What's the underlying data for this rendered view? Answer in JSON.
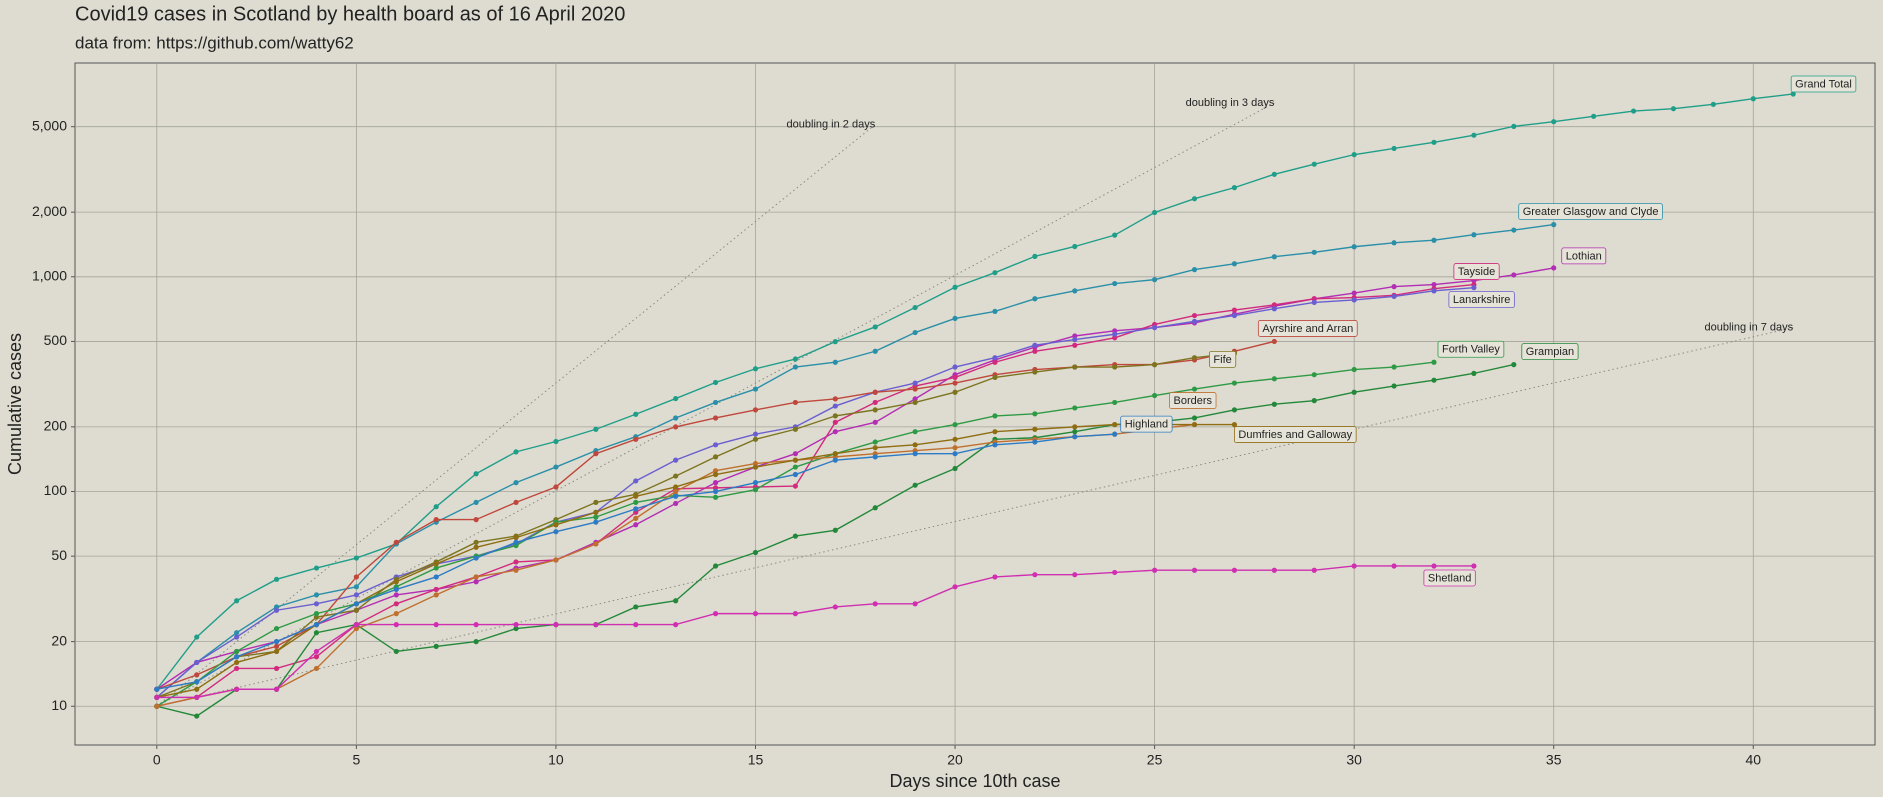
{
  "chart_data": {
    "type": "line",
    "title": "Covid19 cases in Scotland by health board as of 16 April 2020",
    "subtitle": "data from: https://github.com/watty62",
    "x_label": "Days since 10th case",
    "y_label": "Cumulative cases",
    "log_y": true,
    "grid": true,
    "xlim": [
      -2.05,
      43.05
    ],
    "xticks": [
      0,
      5,
      10,
      15,
      20,
      25,
      30,
      35,
      40
    ],
    "ylim": [
      6.6,
      9900
    ],
    "yticks": [
      10,
      20,
      50,
      100,
      200,
      500,
      {
        "value": 1000,
        "label": "1,000"
      },
      {
        "value": 2000,
        "label": "2,000"
      },
      {
        "value": 5000,
        "label": "5,000"
      }
    ],
    "x": [
      0,
      1,
      2,
      3,
      4,
      5,
      6,
      7,
      8,
      9,
      10,
      11,
      12,
      13,
      14,
      15,
      16,
      17,
      18,
      19,
      20,
      21,
      22,
      23,
      24,
      25,
      26,
      27,
      28,
      29,
      30,
      31,
      32,
      33,
      34,
      35,
      36,
      37,
      38,
      39,
      40,
      41
    ],
    "series": [
      {
        "name": "Grand Total",
        "color": "#1f9e89",
        "values": [
          12,
          21,
          31,
          39,
          44,
          49,
          57,
          85,
          121,
          153,
          171,
          195,
          229,
          271,
          322,
          373,
          414,
          499,
          584,
          719,
          894,
          1045,
          1245,
          1384,
          1563,
          1993,
          2310,
          2602,
          3001,
          3345,
          3706,
          3961,
          4229,
          4565,
          5018,
          5275,
          5590,
          5912,
          6067,
          6358,
          6748,
          7102
        ]
      },
      {
        "name": "Greater Glasgow and Clyde",
        "color": "#2a8fa8",
        "values": [
          11,
          16,
          22,
          29,
          33,
          36,
          57,
          72,
          89,
          110,
          130,
          155,
          180,
          220,
          260,
          300,
          380,
          400,
          450,
          550,
          640,
          690,
          790,
          860,
          930,
          970,
          1080,
          1150,
          1240,
          1300,
          1380,
          1440,
          1480,
          1570,
          1650,
          1750,
          null,
          null,
          null,
          null,
          null,
          null
        ]
      },
      {
        "name": "Lothian",
        "color": "#b32db5",
        "values": [
          12,
          16,
          18,
          20,
          24,
          28,
          33,
          35,
          38,
          44,
          48,
          58,
          70,
          88,
          110,
          130,
          150,
          190,
          210,
          270,
          350,
          410,
          470,
          530,
          560,
          580,
          610,
          670,
          730,
          790,
          840,
          900,
          920,
          960,
          1020,
          1100,
          null,
          null,
          null,
          null,
          null,
          null
        ]
      },
      {
        "name": "Tayside",
        "color": "#d12a7e",
        "values": [
          10,
          11,
          15,
          15,
          17,
          24,
          30,
          35,
          40,
          47,
          48,
          57,
          80,
          103,
          104,
          105,
          106,
          210,
          260,
          310,
          340,
          400,
          450,
          480,
          520,
          600,
          660,
          700,
          740,
          790,
          800,
          820,
          880,
          920,
          null,
          null,
          null,
          null,
          null,
          null,
          null,
          null
        ]
      },
      {
        "name": "Lanarkshire",
        "color": "#6a5fd0",
        "values": [
          11,
          16,
          21,
          28,
          30,
          33,
          40,
          46,
          50,
          57,
          72,
          80,
          112,
          140,
          165,
          185,
          200,
          250,
          290,
          320,
          380,
          420,
          480,
          510,
          540,
          580,
          620,
          660,
          710,
          760,
          780,
          810,
          860,
          890,
          null,
          null,
          null,
          null,
          null,
          null,
          null,
          null
        ]
      },
      {
        "name": "Ayrshire and Arran",
        "color": "#c0473c",
        "values": [
          12,
          14,
          17,
          19,
          24,
          40,
          58,
          74,
          74,
          89,
          105,
          150,
          175,
          200,
          220,
          240,
          260,
          270,
          290,
          300,
          320,
          350,
          370,
          380,
          390,
          390,
          410,
          450,
          500,
          null,
          null,
          null,
          null,
          null,
          null,
          null,
          null,
          null,
          null,
          null,
          null,
          null
        ]
      },
      {
        "name": "Fife",
        "color": "#7d7420",
        "values": [
          11,
          13,
          17,
          18,
          26,
          28,
          39,
          47,
          58,
          62,
          74,
          89,
          97,
          118,
          145,
          175,
          195,
          225,
          240,
          260,
          290,
          340,
          360,
          380,
          380,
          390,
          420,
          440,
          null,
          null,
          null,
          null,
          null,
          null,
          null,
          null,
          null,
          null,
          null,
          null,
          null,
          null
        ]
      },
      {
        "name": "Forth Valley",
        "color": "#2f9a45",
        "values": [
          10,
          13,
          18,
          23,
          27,
          30,
          36,
          44,
          50,
          56,
          72,
          76,
          89,
          96,
          94,
          102,
          130,
          150,
          170,
          190,
          205,
          225,
          230,
          245,
          260,
          280,
          300,
          320,
          335,
          350,
          370,
          380,
          400,
          null,
          null,
          null,
          null,
          null,
          null,
          null,
          null,
          null
        ]
      },
      {
        "name": "Grampian",
        "color": "#23883a",
        "values": [
          10,
          9,
          12,
          12,
          22,
          24,
          18,
          19,
          20,
          23,
          24,
          24,
          29,
          31,
          45,
          52,
          62,
          66,
          84,
          107,
          128,
          175,
          178,
          190,
          205,
          210,
          220,
          240,
          255,
          265,
          290,
          310,
          330,
          355,
          390,
          null,
          null,
          null,
          null,
          null,
          null,
          null
        ]
      },
      {
        "name": "Borders",
        "color": "#c0702e",
        "values": [
          10,
          11,
          12,
          12,
          15,
          23,
          27,
          33,
          40,
          43,
          48,
          57,
          75,
          100,
          125,
          135,
          140,
          145,
          150,
          155,
          160,
          170,
          175,
          180,
          185,
          195,
          205,
          null,
          null,
          null,
          null,
          null,
          null,
          null,
          null,
          null,
          null,
          null,
          null,
          null,
          null,
          null
        ]
      },
      {
        "name": "Dumfries and Galloway",
        "color": "#8f6d12",
        "values": [
          11,
          12,
          16,
          18,
          24,
          30,
          38,
          46,
          55,
          61,
          70,
          80,
          95,
          105,
          120,
          130,
          140,
          150,
          160,
          165,
          175,
          190,
          195,
          200,
          205,
          205,
          205,
          205,
          null,
          null,
          null,
          null,
          null,
          null,
          null,
          null,
          null,
          null,
          null,
          null,
          null,
          null
        ]
      },
      {
        "name": "Highland",
        "color": "#2c7bc4",
        "values": [
          12,
          13,
          17,
          20,
          24,
          30,
          35,
          40,
          49,
          58,
          65,
          72,
          83,
          95,
          100,
          110,
          120,
          140,
          145,
          150,
          150,
          165,
          170,
          180,
          185,
          null,
          null,
          null,
          null,
          null,
          null,
          null,
          null,
          null,
          null,
          null,
          null,
          null,
          null,
          null,
          null,
          null
        ]
      },
      {
        "name": "Shetland",
        "color": "#cf2fb0",
        "values": [
          11,
          11,
          12,
          12,
          18,
          24,
          24,
          24,
          24,
          24,
          24,
          24,
          24,
          24,
          27,
          27,
          27,
          29,
          30,
          30,
          36,
          40,
          41,
          41,
          42,
          43,
          43,
          43,
          43,
          43,
          45,
          45,
          45,
          45,
          null,
          null,
          null,
          null,
          null,
          null,
          null,
          null
        ]
      }
    ],
    "reference_lines": [
      {
        "label": "doubling in 2 days",
        "x": [
          0,
          18
        ],
        "values": [
          10,
          5120
        ]
      },
      {
        "label": "doubling in 3 days",
        "x": [
          0,
          28
        ],
        "values": [
          10,
          6450
        ]
      },
      {
        "label": "doubling in 7 days",
        "x": [
          0,
          41
        ],
        "values": [
          10,
          580
        ]
      }
    ]
  }
}
